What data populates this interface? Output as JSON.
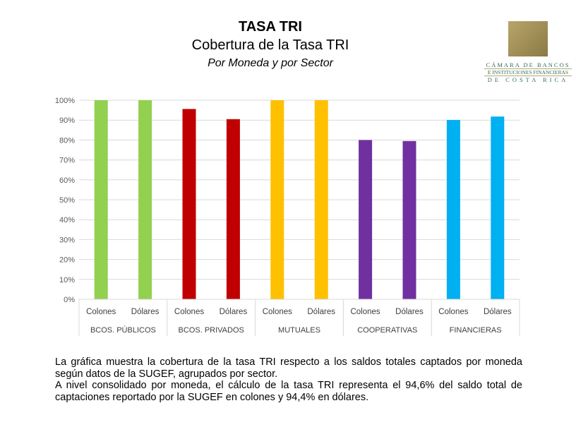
{
  "header": {
    "title": "TASA TRI",
    "subtitle": "Cobertura de la Tasa TRI",
    "subtitle2": "Por Moneda y por Sector"
  },
  "logo": {
    "line1": "CÁMARA DE BANCOS",
    "line2": "E INSTITUCIONES FINANCIERAS",
    "line3": "DE COSTA RICA"
  },
  "chart_data": {
    "type": "bar",
    "groups": [
      "BCOS. PÚBLICOS",
      "BCOS. PRIVADOS",
      "MUTUALES",
      "COOPERATIVAS",
      "FINANCIERAS"
    ],
    "categories": [
      "Colones",
      "Dólares",
      "Colones",
      "Dólares",
      "Colones",
      "Dólares",
      "Colones",
      "Dólares",
      "Colones",
      "Dólares"
    ],
    "values": [
      100,
      100,
      95.6,
      90.5,
      100,
      100,
      80.0,
      79.5,
      90.1,
      91.8
    ],
    "group_colors": [
      "#92d050",
      "#c00000",
      "#ffc000",
      "#7030a0",
      "#00b0f0"
    ],
    "yticks": [
      "0%",
      "10%",
      "20%",
      "30%",
      "40%",
      "50%",
      "60%",
      "70%",
      "80%",
      "90%",
      "100%"
    ],
    "ylim": [
      0,
      100
    ],
    "grid": true
  },
  "description": {
    "p1": "La gráfica muestra la cobertura de la tasa TRI respecto a los saldos totales captados por moneda según datos de la SUGEF, agrupados por sector.",
    "p2": "A nivel consolidado por moneda, el cálculo de la tasa TRI representa el 94,6% del saldo total de captaciones reportado por la SUGEF en colones y 94,4% en dólares."
  }
}
